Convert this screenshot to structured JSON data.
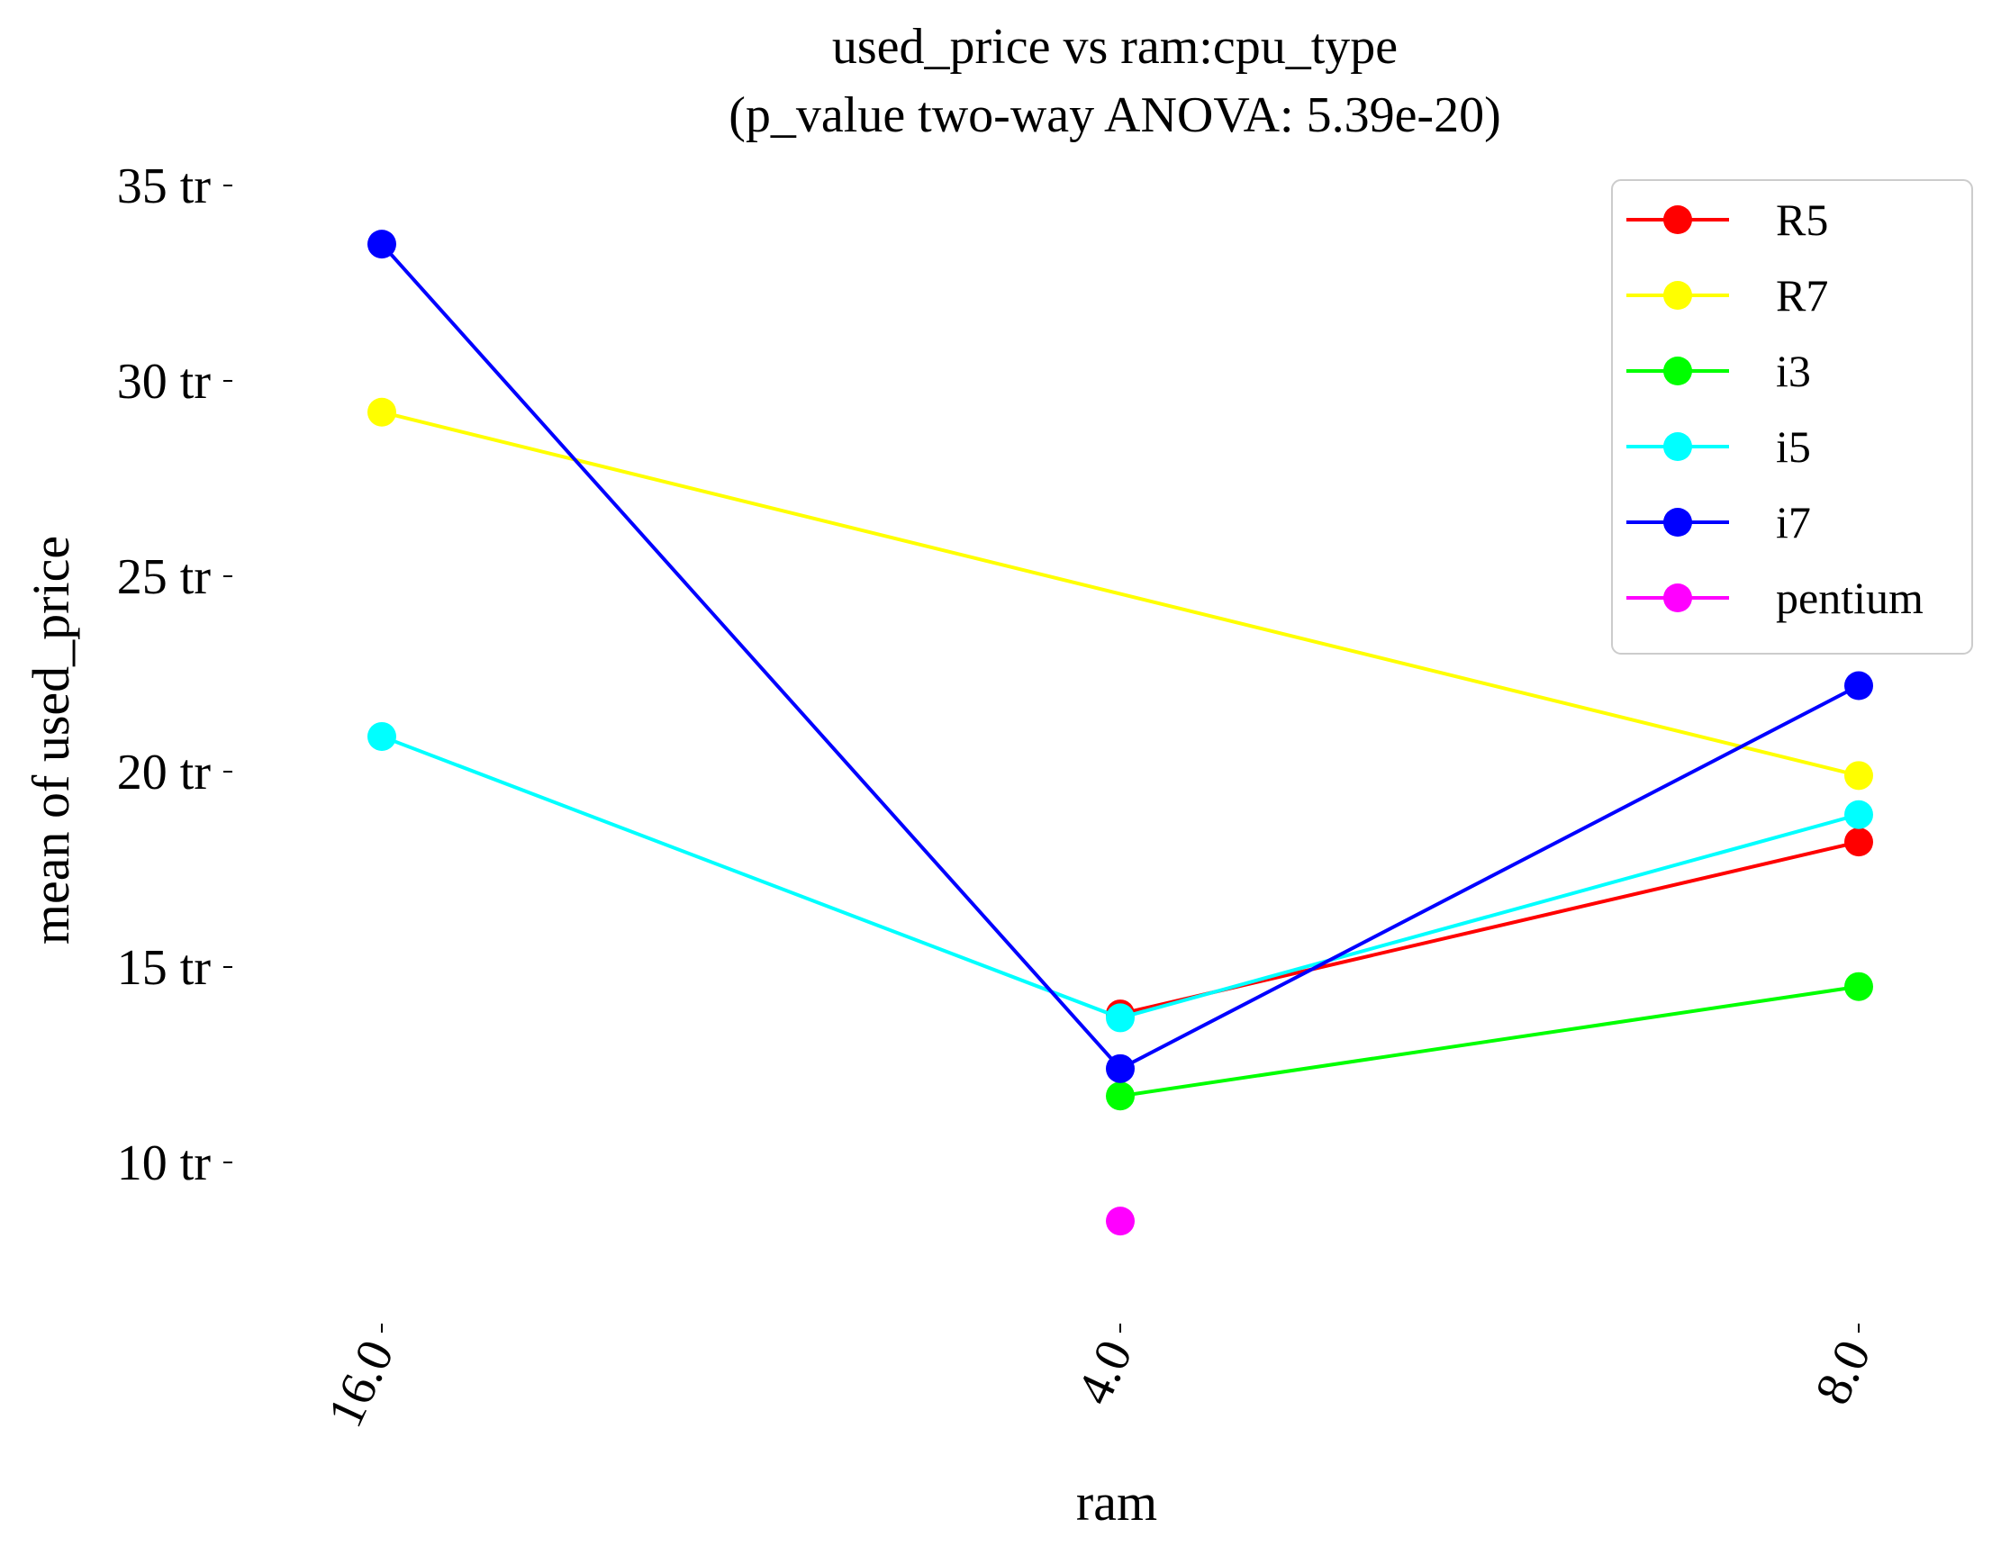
{
  "chart_data": {
    "type": "line",
    "title": "used_price vs ram:cpu_type",
    "subtitle": "(p_value two-way ANOVA: 5.39e-20)",
    "xlabel": "ram",
    "ylabel": "mean of used_price",
    "categories": [
      "16.0",
      "4.0",
      "8.0"
    ],
    "y_ticks": [
      {
        "value": 10,
        "label": "10 tr"
      },
      {
        "value": 15,
        "label": "15 tr"
      },
      {
        "value": 20,
        "label": "20 tr"
      },
      {
        "value": 25,
        "label": "25 tr"
      },
      {
        "value": 30,
        "label": "30 tr"
      },
      {
        "value": 35,
        "label": "35 tr"
      }
    ],
    "ylim": [
      6.0,
      36.5
    ],
    "grid": false,
    "legend_position": "top-right",
    "series": [
      {
        "name": "R5",
        "color": "#ff0000",
        "values": [
          null,
          13.8,
          18.2
        ]
      },
      {
        "name": "R7",
        "color": "#ffff00",
        "values": [
          29.2,
          null,
          19.9
        ]
      },
      {
        "name": "i3",
        "color": "#00ff00",
        "values": [
          null,
          11.7,
          14.5
        ]
      },
      {
        "name": "i5",
        "color": "#00ffff",
        "values": [
          20.9,
          13.7,
          18.9
        ]
      },
      {
        "name": "i7",
        "color": "#0000ff",
        "values": [
          33.5,
          12.4,
          22.2
        ]
      },
      {
        "name": "pentium",
        "color": "#ff00ff",
        "values": [
          null,
          8.5,
          null
        ]
      }
    ]
  }
}
